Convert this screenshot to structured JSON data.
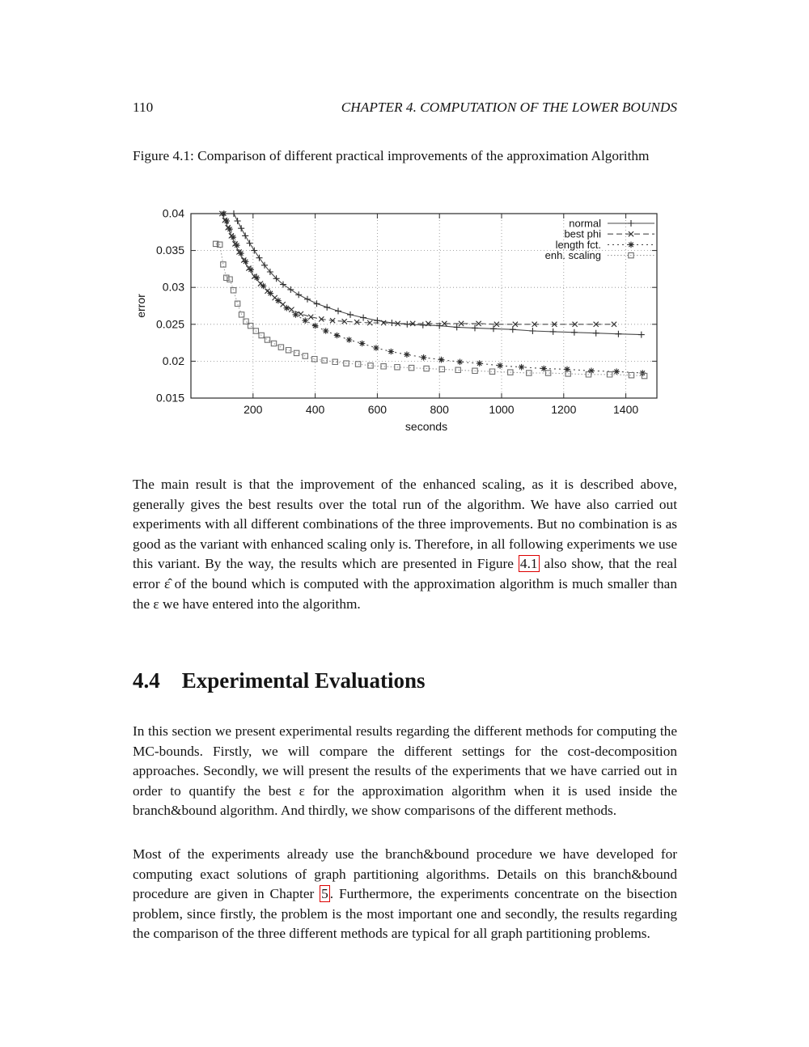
{
  "header": {
    "page_number": "110",
    "chapter_title": "CHAPTER 4.  COMPUTATION OF THE LOWER BOUNDS"
  },
  "figure_caption": "Figure 4.1: Comparison of different practical improvements of the approximation Algorithm",
  "section": {
    "number": "4.4",
    "title": "Experimental Evaluations"
  },
  "link_box_color": "#dd0000",
  "paragraphs": [
    {
      "segments": [
        {
          "t": "The main result is that the improvement of the enhanced scaling, as it is described above, generally gives the best results over the total run of the algorithm. We have also carried out experiments with all different combinations of the three improvements. But no combination is as good as the variant with enhanced scaling only is. Therefore, in all following experiments we use this variant.  By the way, the results which are presented in Figure "
        },
        {
          "t": "4.1",
          "ref": true
        },
        {
          "t": " also show, that the real error ε̂ of the bound which is computed with the approximation algorithm is much smaller than the ε we have entered into the algorithm."
        }
      ]
    },
    {
      "segments": [
        {
          "t": "In this section we present experimental results regarding the different methods for computing the MC-bounds. Firstly, we will compare the different settings for the cost-decomposition approaches.  Secondly, we will present the results of the experiments that we have carried out in order to quantify the best ε for the approximation algorithm when it is used inside the branch&bound algorithm. And thirdly, we show comparisons of the different methods."
        }
      ]
    },
    {
      "segments": [
        {
          "t": "Most of the experiments already use the branch&bound procedure we have developed for computing exact solutions of graph partitioning algorithms.  Details on this branch&bound procedure are given in Chapter "
        },
        {
          "t": "5",
          "ref": true
        },
        {
          "t": ". Furthermore, the experiments concentrate on the bisection problem, since firstly, the problem is the most important one and secondly, the results regarding the comparison of the three different methods are typical for all graph partitioning problems."
        }
      ]
    }
  ],
  "chart_data": {
    "type": "line",
    "title": "",
    "xlabel": "seconds",
    "ylabel": "error",
    "xlim": [
      0,
      1500
    ],
    "ylim": [
      0.015,
      0.04
    ],
    "xticks": [
      200,
      400,
      600,
      800,
      1000,
      1200,
      1400
    ],
    "yticks": [
      0.015,
      0.02,
      0.025,
      0.03,
      0.035,
      0.04
    ],
    "ytick_labels": [
      "0.015",
      "0.02",
      "0.025",
      "0.03",
      "0.035",
      "0.04"
    ],
    "grid": true,
    "legend_position": "top-right",
    "series": [
      {
        "name": "normal",
        "marker": "plus",
        "dash": "solid",
        "points": [
          [
            138,
            0.04
          ],
          [
            150,
            0.039
          ],
          [
            162,
            0.038
          ],
          [
            175,
            0.037
          ],
          [
            189,
            0.036
          ],
          [
            204,
            0.035
          ],
          [
            220,
            0.034
          ],
          [
            237,
            0.033
          ],
          [
            255,
            0.0321
          ],
          [
            275,
            0.0312
          ],
          [
            297,
            0.0304
          ],
          [
            321,
            0.0297
          ],
          [
            347,
            0.029
          ],
          [
            375,
            0.0284
          ],
          [
            405,
            0.0278
          ],
          [
            438,
            0.0273
          ],
          [
            474,
            0.0268
          ],
          [
            513,
            0.0263
          ],
          [
            555,
            0.0259
          ],
          [
            600,
            0.0255
          ],
          [
            647,
            0.0252
          ],
          [
            696,
            0.025
          ],
          [
            747,
            0.0249
          ],
          [
            800,
            0.0248
          ],
          [
            856,
            0.0246
          ],
          [
            914,
            0.0245
          ],
          [
            974,
            0.0244
          ],
          [
            1036,
            0.0243
          ],
          [
            1100,
            0.0241
          ],
          [
            1166,
            0.024
          ],
          [
            1234,
            0.0239
          ],
          [
            1304,
            0.0238
          ],
          [
            1376,
            0.0237
          ],
          [
            1450,
            0.0236
          ]
        ]
      },
      {
        "name": "best phi",
        "marker": "cross",
        "dash": "dashed",
        "points": [
          [
            100,
            0.04
          ],
          [
            109,
            0.0391
          ],
          [
            119,
            0.0381
          ],
          [
            130,
            0.037
          ],
          [
            142,
            0.0359
          ],
          [
            155,
            0.0348
          ],
          [
            170,
            0.0337
          ],
          [
            186,
            0.0326
          ],
          [
            204,
            0.0315
          ],
          [
            224,
            0.0305
          ],
          [
            246,
            0.0295
          ],
          [
            270,
            0.0286
          ],
          [
            296,
            0.0277
          ],
          [
            324,
            0.027
          ],
          [
            354,
            0.0264
          ],
          [
            386,
            0.026
          ],
          [
            420,
            0.0257
          ],
          [
            456,
            0.0255
          ],
          [
            494,
            0.0254
          ],
          [
            534,
            0.0253
          ],
          [
            576,
            0.0252
          ],
          [
            620,
            0.0252
          ],
          [
            666,
            0.0251
          ],
          [
            714,
            0.0251
          ],
          [
            764,
            0.0251
          ],
          [
            816,
            0.0251
          ],
          [
            870,
            0.0251
          ],
          [
            926,
            0.0251
          ],
          [
            984,
            0.025
          ],
          [
            1044,
            0.025
          ],
          [
            1106,
            0.025
          ],
          [
            1170,
            0.025
          ],
          [
            1236,
            0.025
          ],
          [
            1304,
            0.025
          ],
          [
            1362,
            0.025
          ]
        ]
      },
      {
        "name": "length fct.",
        "marker": "asterisk",
        "dash": "dotdash",
        "points": [
          [
            106,
            0.04
          ],
          [
            115,
            0.039
          ],
          [
            125,
            0.0379
          ],
          [
            136,
            0.0368
          ],
          [
            148,
            0.0357
          ],
          [
            161,
            0.0346
          ],
          [
            176,
            0.0335
          ],
          [
            193,
            0.0324
          ],
          [
            212,
            0.0313
          ],
          [
            233,
            0.0302
          ],
          [
            256,
            0.0292
          ],
          [
            281,
            0.0282
          ],
          [
            308,
            0.0272
          ],
          [
            337,
            0.0263
          ],
          [
            368,
            0.0255
          ],
          [
            400,
            0.0248
          ],
          [
            434,
            0.0241
          ],
          [
            470,
            0.0235
          ],
          [
            509,
            0.0229
          ],
          [
            551,
            0.0224
          ],
          [
            596,
            0.0218
          ],
          [
            644,
            0.0213
          ],
          [
            695,
            0.0209
          ],
          [
            749,
            0.0205
          ],
          [
            806,
            0.0202
          ],
          [
            866,
            0.0199
          ],
          [
            929,
            0.0197
          ],
          [
            995,
            0.0194
          ],
          [
            1064,
            0.0192
          ],
          [
            1136,
            0.019
          ],
          [
            1211,
            0.0189
          ],
          [
            1289,
            0.0187
          ],
          [
            1370,
            0.0186
          ],
          [
            1454,
            0.0184
          ]
        ]
      },
      {
        "name": "enh. scaling",
        "marker": "square",
        "dash": "dotted",
        "points": [
          [
            80,
            0.0359
          ],
          [
            93,
            0.0358
          ],
          [
            104,
            0.0331
          ],
          [
            114,
            0.0313
          ],
          [
            125,
            0.0311
          ],
          [
            137,
            0.0296
          ],
          [
            150,
            0.0278
          ],
          [
            163,
            0.0263
          ],
          [
            177,
            0.0254
          ],
          [
            192,
            0.0248
          ],
          [
            209,
            0.0241
          ],
          [
            227,
            0.0235
          ],
          [
            246,
            0.0229
          ],
          [
            267,
            0.0224
          ],
          [
            290,
            0.0219
          ],
          [
            314,
            0.0215
          ],
          [
            340,
            0.0211
          ],
          [
            368,
            0.0207
          ],
          [
            398,
            0.0203
          ],
          [
            430,
            0.0201
          ],
          [
            464,
            0.0199
          ],
          [
            500,
            0.0197
          ],
          [
            538,
            0.0196
          ],
          [
            578,
            0.0194
          ],
          [
            620,
            0.0193
          ],
          [
            664,
            0.0192
          ],
          [
            710,
            0.0191
          ],
          [
            758,
            0.019
          ],
          [
            808,
            0.0189
          ],
          [
            860,
            0.0188
          ],
          [
            914,
            0.0187
          ],
          [
            970,
            0.0186
          ],
          [
            1028,
            0.0185
          ],
          [
            1088,
            0.0184
          ],
          [
            1150,
            0.0184
          ],
          [
            1214,
            0.0183
          ],
          [
            1280,
            0.0182
          ],
          [
            1348,
            0.0182
          ],
          [
            1418,
            0.0181
          ],
          [
            1460,
            0.018
          ]
        ]
      }
    ]
  }
}
